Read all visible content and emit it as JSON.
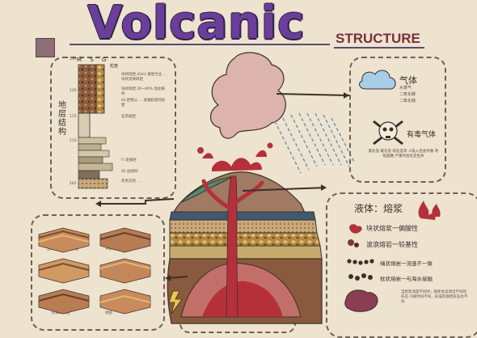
{
  "header": {
    "title": "Volcanic",
    "subtitle": "STRUCTURE"
  },
  "strata_panel": {
    "vertical_label": "地层结构",
    "scale_header": "M S G",
    "top_header": "粒度",
    "scale_ticks": [
      "130",
      "120",
      "115",
      "110",
      "165"
    ],
    "notes": [
      {
        "code": "Gm",
        "text": "块状砾岩 (Gm) 基岩为主 ...块状流体砾岩"
      },
      {
        "code": "Gm",
        "text": "块状砾岩 20~40% 含砂质体"
      },
      {
        "code": "Gt",
        "text": "Gt 岩性以 ... 泥质胶结的砂岩"
      },
      {
        "code": "Tr",
        "text": "石英斑岩"
      },
      {
        "code": "Fl",
        "text": "Fl 泥质岩"
      },
      {
        "code": "Sh",
        "text": "Sh 层状砂"
      },
      {
        "code": "Sr",
        "text": "灰色页岩 ..."
      },
      {
        "code": "Gm",
        "text": "Gm"
      }
    ]
  },
  "gas_panel": {
    "title": "气体",
    "items": [
      "水蒸气",
      "二氧化碳",
      "二氧化硫"
    ],
    "toxic_title": "有毒气体",
    "toxic_desc": "氯化氢 氟化氢 硫化氢等 人吸入后会导致 呼吸困难 严重时会危及生命"
  },
  "liquid_panel": {
    "title": "液体：熔浆",
    "items": [
      "块状熔浆一偏酸性",
      "波浪熔岩一较基性",
      "绳状熔岩一流速不一致",
      "枕状熔岩一与海水接触"
    ],
    "footnote": "当岩浆温度不同时，熔浆会呈现出不同的形态 冷却时间不同，形成的熔岩形态也不同"
  },
  "fault_panel": {
    "labels": [
      "正断层",
      "逆断层",
      "平移断层",
      "地垒",
      "地堑",
      "阶梯状断层"
    ],
    "caption": "可见岩层中的断层、褶皱、节理等地质构造 ..."
  },
  "colors": {
    "background": "#ede3cf",
    "title_purple": "#6b3e9a",
    "subtitle_red": "#7a2f3c",
    "magma_red": "#b5303a",
    "smoke_pink": "#dcb3ad",
    "dash_border": "#6f5f55",
    "rain_blue": "#5b8db3",
    "cloud_blue": "#a9cde6"
  }
}
